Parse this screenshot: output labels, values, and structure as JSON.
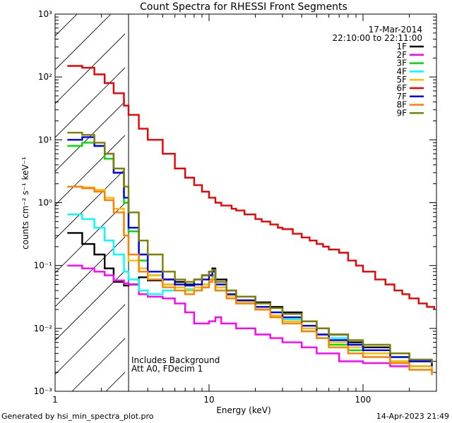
{
  "chart_data": {
    "type": "line",
    "title": "Count Spectra for RHESSI Front Segments",
    "xlabel": "Energy (keV)",
    "ylabel": "counts cm⁻² s⁻¹ keV⁻¹",
    "xscale": "log",
    "yscale": "log",
    "xlim": [
      1,
      300
    ],
    "ylim": [
      0.001,
      1000
    ],
    "x_ticks": [
      {
        "value": 1,
        "label": "1"
      },
      {
        "value": 10,
        "label": "10"
      },
      {
        "value": 100,
        "label": "100"
      }
    ],
    "y_ticks": [
      {
        "value": 0.001,
        "label": "10⁻³"
      },
      {
        "value": 0.01,
        "label": "10⁻²"
      },
      {
        "value": 0.1,
        "label": "10⁻¹"
      },
      {
        "value": 1,
        "label": "10⁰"
      },
      {
        "value": 10,
        "label": "10¹"
      },
      {
        "value": 100,
        "label": "10²"
      },
      {
        "value": 1000,
        "label": "10³"
      }
    ],
    "date": "17-Mar-2014",
    "time_range": "22:10:00 to 22:11:00",
    "hatched_below_keV": 3,
    "annotations": [
      "Includes Background",
      "Att A0, FDecim 1"
    ],
    "footer_left": "Generated by hsi_min_spectra_plot.pro",
    "footer_right": "14-Apr-2023 21:49",
    "legend_position": "top-right",
    "series": [
      {
        "name": "1F",
        "color": "#000000",
        "points": [
          [
            1.2,
            0.33
          ],
          [
            1.5,
            0.22
          ],
          [
            1.8,
            0.15
          ],
          [
            2.1,
            0.09
          ],
          [
            2.4,
            0.055
          ],
          [
            2.8,
            0.048
          ],
          [
            3.0,
            0.05
          ],
          [
            3.5,
            0.065
          ],
          [
            4.0,
            0.058
          ],
          [
            5.0,
            0.06
          ],
          [
            6.0,
            0.055
          ],
          [
            7.0,
            0.05
          ],
          [
            8.0,
            0.06
          ],
          [
            9.0,
            0.07
          ],
          [
            10,
            0.08
          ],
          [
            10.5,
            0.09
          ],
          [
            11,
            0.06
          ],
          [
            13,
            0.04
          ],
          [
            15,
            0.032
          ],
          [
            20,
            0.026
          ],
          [
            25,
            0.022
          ],
          [
            30,
            0.018
          ],
          [
            40,
            0.013
          ],
          [
            50,
            0.01
          ],
          [
            60,
            0.008
          ],
          [
            80,
            0.006
          ],
          [
            100,
            0.005
          ],
          [
            150,
            0.004
          ],
          [
            200,
            0.003
          ],
          [
            280,
            0.0025
          ]
        ]
      },
      {
        "name": "2F",
        "color": "#ff00ff",
        "points": [
          [
            1.2,
            0.1
          ],
          [
            1.5,
            0.09
          ],
          [
            1.8,
            0.08
          ],
          [
            2.1,
            0.07
          ],
          [
            2.4,
            0.058
          ],
          [
            2.8,
            0.052
          ],
          [
            3.0,
            0.05
          ],
          [
            3.5,
            0.035
          ],
          [
            4.0,
            0.032
          ],
          [
            5.0,
            0.03
          ],
          [
            6.0,
            0.025
          ],
          [
            7.0,
            0.018
          ],
          [
            8.0,
            0.012
          ],
          [
            9.0,
            0.012
          ],
          [
            10,
            0.013
          ],
          [
            11,
            0.015
          ],
          [
            12,
            0.012
          ],
          [
            15,
            0.01
          ],
          [
            20,
            0.008
          ],
          [
            25,
            0.007
          ],
          [
            30,
            0.006
          ],
          [
            40,
            0.005
          ],
          [
            50,
            0.004
          ],
          [
            70,
            0.003
          ],
          [
            100,
            0.0028
          ],
          [
            150,
            0.0025
          ],
          [
            200,
            0.0025
          ],
          [
            280,
            0.0022
          ]
        ]
      },
      {
        "name": "3F",
        "color": "#00dd00",
        "points": [
          [
            1.2,
            8
          ],
          [
            1.5,
            9
          ],
          [
            1.8,
            8
          ],
          [
            2.1,
            5
          ],
          [
            2.4,
            3
          ],
          [
            2.8,
            1
          ],
          [
            3.0,
            0.35
          ],
          [
            3.5,
            0.12
          ],
          [
            4.0,
            0.07
          ],
          [
            5.0,
            0.05
          ],
          [
            6.0,
            0.045
          ],
          [
            7.0,
            0.04
          ],
          [
            8.0,
            0.04
          ],
          [
            9.0,
            0.045
          ],
          [
            10,
            0.06
          ],
          [
            10.5,
            0.07
          ],
          [
            11,
            0.04
          ],
          [
            13,
            0.03
          ],
          [
            15,
            0.025
          ],
          [
            20,
            0.02
          ],
          [
            25,
            0.016
          ],
          [
            30,
            0.013
          ],
          [
            40,
            0.009
          ],
          [
            50,
            0.007
          ],
          [
            60,
            0.0055
          ],
          [
            80,
            0.0045
          ],
          [
            100,
            0.004
          ],
          [
            150,
            0.003
          ],
          [
            200,
            0.0025
          ],
          [
            280,
            0.002
          ]
        ]
      },
      {
        "name": "4F",
        "color": "#00ffff",
        "points": [
          [
            1.2,
            0.65
          ],
          [
            1.5,
            0.55
          ],
          [
            1.8,
            0.4
          ],
          [
            2.1,
            0.25
          ],
          [
            2.4,
            0.15
          ],
          [
            2.8,
            0.08
          ],
          [
            3.0,
            0.06
          ],
          [
            3.5,
            0.04
          ],
          [
            4.0,
            0.035
          ],
          [
            5.0,
            0.04
          ],
          [
            6.0,
            0.04
          ],
          [
            7.0,
            0.042
          ],
          [
            8.0,
            0.045
          ],
          [
            9.0,
            0.05
          ],
          [
            10,
            0.06
          ],
          [
            10.5,
            0.065
          ],
          [
            11,
            0.045
          ],
          [
            13,
            0.035
          ],
          [
            15,
            0.028
          ],
          [
            20,
            0.022
          ],
          [
            25,
            0.018
          ],
          [
            30,
            0.014
          ],
          [
            40,
            0.01
          ],
          [
            50,
            0.008
          ],
          [
            60,
            0.007
          ],
          [
            80,
            0.0055
          ],
          [
            100,
            0.0045
          ],
          [
            150,
            0.0035
          ],
          [
            200,
            0.003
          ],
          [
            280,
            0.0025
          ]
        ]
      },
      {
        "name": "5F",
        "color": "#ffbb00",
        "points": [
          [
            1.2,
            1.8
          ],
          [
            1.5,
            1.75
          ],
          [
            1.8,
            1.6
          ],
          [
            2.1,
            1.2
          ],
          [
            2.4,
            0.8
          ],
          [
            2.8,
            0.3
          ],
          [
            3.0,
            0.12
          ],
          [
            3.5,
            0.09
          ],
          [
            4.0,
            0.07
          ],
          [
            5.0,
            0.05
          ],
          [
            6.0,
            0.045
          ],
          [
            7.0,
            0.04
          ],
          [
            8.0,
            0.045
          ],
          [
            9.0,
            0.05
          ],
          [
            10,
            0.06
          ],
          [
            10.5,
            0.07
          ],
          [
            11,
            0.045
          ],
          [
            13,
            0.033
          ],
          [
            15,
            0.027
          ],
          [
            20,
            0.02
          ],
          [
            25,
            0.016
          ],
          [
            30,
            0.013
          ],
          [
            40,
            0.01
          ],
          [
            50,
            0.008
          ],
          [
            60,
            0.006
          ],
          [
            80,
            0.005
          ],
          [
            100,
            0.004
          ],
          [
            150,
            0.003
          ],
          [
            200,
            0.0025
          ],
          [
            280,
            0.002
          ]
        ]
      },
      {
        "name": "6F",
        "color": "#ee0000",
        "points": [
          [
            1.2,
            150
          ],
          [
            1.5,
            140
          ],
          [
            1.8,
            110
          ],
          [
            2.1,
            80
          ],
          [
            2.4,
            55
          ],
          [
            2.8,
            35
          ],
          [
            3.0,
            25
          ],
          [
            3.5,
            15
          ],
          [
            4.0,
            10
          ],
          [
            5.0,
            6
          ],
          [
            6.0,
            3.5
          ],
          [
            7.0,
            2.5
          ],
          [
            8.0,
            1.9
          ],
          [
            9.0,
            1.5
          ],
          [
            10,
            1.2
          ],
          [
            11,
            1.0
          ],
          [
            12,
            0.9
          ],
          [
            14,
            0.8
          ],
          [
            15,
            0.75
          ],
          [
            17,
            0.65
          ],
          [
            20,
            0.55
          ],
          [
            22,
            0.5
          ],
          [
            25,
            0.45
          ],
          [
            28,
            0.4
          ],
          [
            30,
            0.38
          ],
          [
            35,
            0.32
          ],
          [
            40,
            0.28
          ],
          [
            45,
            0.25
          ],
          [
            50,
            0.22
          ],
          [
            55,
            0.2
          ],
          [
            60,
            0.18
          ],
          [
            70,
            0.16
          ],
          [
            80,
            0.12
          ],
          [
            90,
            0.1
          ],
          [
            100,
            0.08
          ],
          [
            120,
            0.06
          ],
          [
            140,
            0.05
          ],
          [
            160,
            0.04
          ],
          [
            180,
            0.035
          ],
          [
            200,
            0.03
          ],
          [
            230,
            0.025
          ],
          [
            260,
            0.022
          ],
          [
            290,
            0.02
          ]
        ]
      },
      {
        "name": "7F",
        "color": "#0000ee",
        "points": [
          [
            1.2,
            10
          ],
          [
            1.5,
            11
          ],
          [
            1.8,
            8
          ],
          [
            2.1,
            6
          ],
          [
            2.4,
            3
          ],
          [
            2.8,
            1.2
          ],
          [
            3.0,
            0.4
          ],
          [
            3.5,
            0.15
          ],
          [
            4.0,
            0.08
          ],
          [
            5.0,
            0.06
          ],
          [
            6.0,
            0.05
          ],
          [
            7.0,
            0.048
          ],
          [
            8.0,
            0.05
          ],
          [
            9.0,
            0.06
          ],
          [
            10,
            0.07
          ],
          [
            10.5,
            0.08
          ],
          [
            11,
            0.05
          ],
          [
            13,
            0.035
          ],
          [
            15,
            0.028
          ],
          [
            20,
            0.022
          ],
          [
            25,
            0.018
          ],
          [
            30,
            0.015
          ],
          [
            40,
            0.011
          ],
          [
            50,
            0.008
          ],
          [
            60,
            0.0065
          ],
          [
            80,
            0.0055
          ],
          [
            100,
            0.0045
          ],
          [
            150,
            0.0035
          ],
          [
            200,
            0.003
          ],
          [
            280,
            0.0025
          ]
        ]
      },
      {
        "name": "8F",
        "color": "#ff7f00",
        "points": [
          [
            1.2,
            1.8
          ],
          [
            1.5,
            1.7
          ],
          [
            1.8,
            1.5
          ],
          [
            2.1,
            1.1
          ],
          [
            2.4,
            0.7
          ],
          [
            2.8,
            0.3
          ],
          [
            3.0,
            0.15
          ],
          [
            3.5,
            0.08
          ],
          [
            4.0,
            0.06
          ],
          [
            5.0,
            0.045
          ],
          [
            6.0,
            0.04
          ],
          [
            7.0,
            0.035
          ],
          [
            8.0,
            0.04
          ],
          [
            9.0,
            0.045
          ],
          [
            10,
            0.055
          ],
          [
            10.5,
            0.06
          ],
          [
            11,
            0.04
          ],
          [
            13,
            0.03
          ],
          [
            15,
            0.025
          ],
          [
            20,
            0.02
          ],
          [
            25,
            0.015
          ],
          [
            30,
            0.012
          ],
          [
            40,
            0.009
          ],
          [
            50,
            0.007
          ],
          [
            60,
            0.005
          ],
          [
            80,
            0.004
          ],
          [
            100,
            0.0035
          ],
          [
            150,
            0.0028
          ],
          [
            200,
            0.0022
          ],
          [
            280,
            0.0018
          ]
        ]
      },
      {
        "name": "9F",
        "color": "#7f7f00",
        "points": [
          [
            1.2,
            13
          ],
          [
            1.5,
            12
          ],
          [
            1.8,
            9
          ],
          [
            2.1,
            6
          ],
          [
            2.4,
            3.5
          ],
          [
            2.8,
            1.8
          ],
          [
            3.0,
            0.7
          ],
          [
            3.5,
            0.25
          ],
          [
            4.0,
            0.15
          ],
          [
            5.0,
            0.08
          ],
          [
            6.0,
            0.06
          ],
          [
            7.0,
            0.055
          ],
          [
            8.0,
            0.06
          ],
          [
            9.0,
            0.07
          ],
          [
            10,
            0.08
          ],
          [
            10.5,
            0.085
          ],
          [
            11,
            0.055
          ],
          [
            13,
            0.04
          ],
          [
            15,
            0.032
          ],
          [
            20,
            0.025
          ],
          [
            25,
            0.021
          ],
          [
            30,
            0.017
          ],
          [
            40,
            0.013
          ],
          [
            50,
            0.01
          ],
          [
            60,
            0.008
          ],
          [
            80,
            0.0065
          ],
          [
            100,
            0.0055
          ],
          [
            150,
            0.004
          ],
          [
            200,
            0.0032
          ],
          [
            280,
            0.0028
          ]
        ]
      }
    ]
  }
}
